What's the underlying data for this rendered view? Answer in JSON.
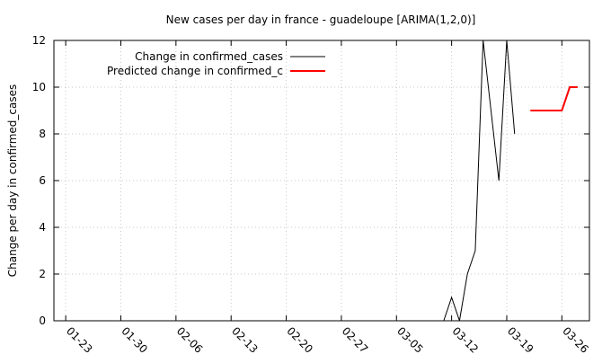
{
  "chart_data": {
    "type": "line",
    "title": "New cases per day in france - guadeloupe [ARIMA(1,2,0)]",
    "xlabel": "",
    "ylabel": "Change per day in confirmed_cases",
    "x_tick_labels": [
      "01-23",
      "01-30",
      "02-06",
      "02-13",
      "02-20",
      "02-27",
      "03-05",
      "03-12",
      "03-19",
      "03-26"
    ],
    "x_tick_day_offsets": [
      0,
      7,
      14,
      21,
      28,
      35,
      42,
      49,
      56,
      63
    ],
    "xlim_day_offsets": [
      -1.5,
      66.5
    ],
    "ylim": [
      0,
      12
    ],
    "y_ticks": [
      0,
      2,
      4,
      6,
      8,
      10,
      12
    ],
    "grid": true,
    "legend_position": "top-left",
    "series": [
      {
        "name": "Change in confirmed_cases",
        "color": "#000000",
        "x": [
          48,
          49,
          50,
          51,
          52,
          53,
          54,
          55,
          56,
          57
        ],
        "y": [
          0,
          1,
          0,
          2,
          3,
          12,
          9,
          6,
          12,
          8
        ]
      },
      {
        "name": "Predicted change in confirmed_c",
        "color": "#ff0000",
        "x": [
          59,
          60,
          61,
          62,
          63,
          64,
          65
        ],
        "y": [
          9,
          9,
          9,
          9,
          9,
          10,
          10
        ]
      }
    ]
  }
}
